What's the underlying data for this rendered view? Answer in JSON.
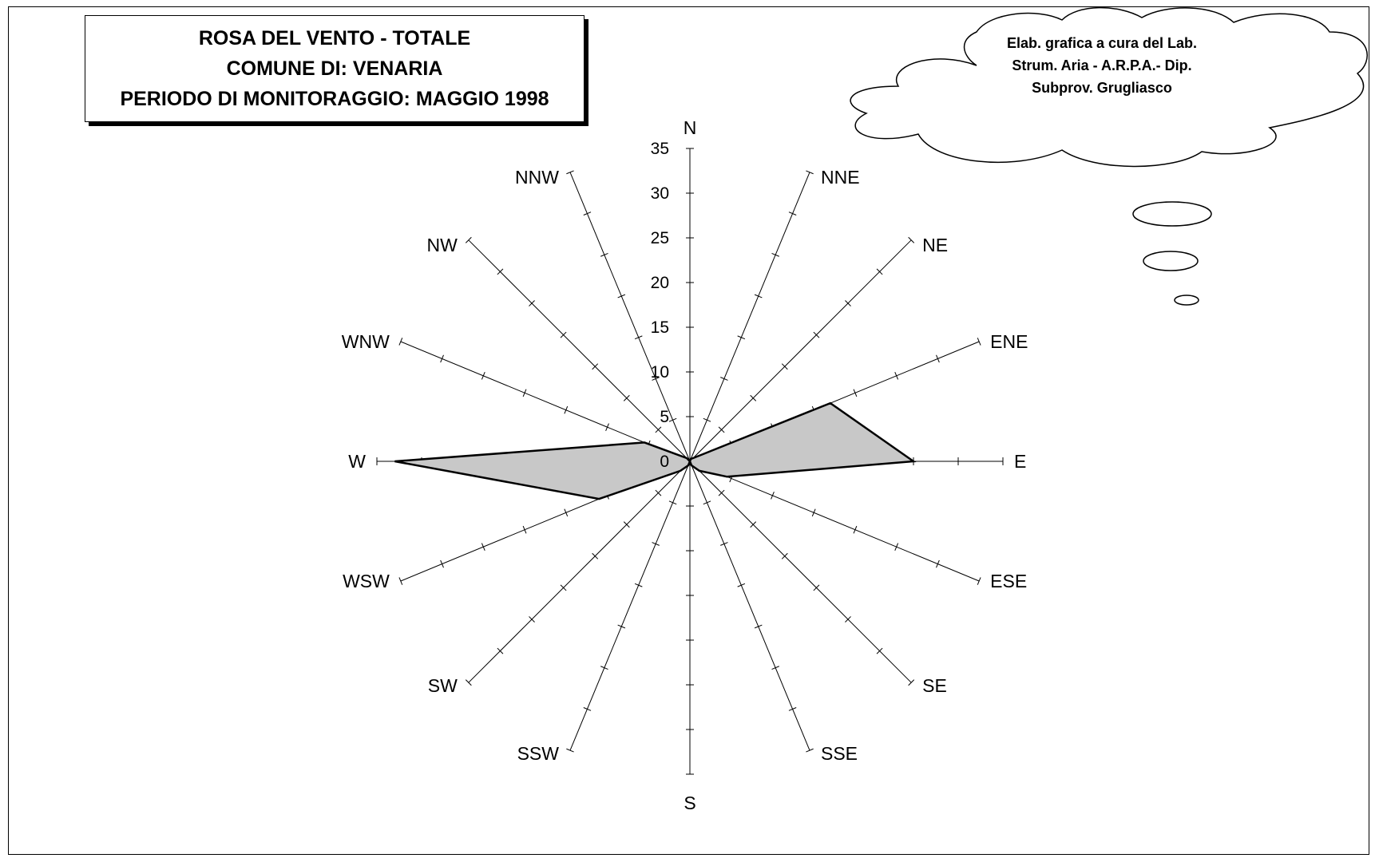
{
  "title": {
    "line1": "ROSA DEL VENTO - TOTALE",
    "line2": "COMUNE DI: VENARIA",
    "line3": "PERIODO DI MONITORAGGIO: MAGGIO 1998"
  },
  "credit": {
    "line1": "Elab. grafica a cura del Lab.",
    "line2": "Strum. Aria - A.R.P.A.- Dip.",
    "line3": "Subprov. Grugliasco"
  },
  "chart_data": {
    "type": "radar",
    "categories": [
      "N",
      "NNE",
      "NE",
      "ENE",
      "E",
      "ESE",
      "SE",
      "SSE",
      "S",
      "SSW",
      "SW",
      "WSW",
      "W",
      "WNW",
      "NW",
      "NNW"
    ],
    "values": [
      0,
      0.3,
      0.5,
      17,
      25,
      4.5,
      1.5,
      0.5,
      0,
      0.5,
      1.5,
      11,
      33,
      5.5,
      0.5,
      0
    ],
    "radial_ticks": [
      0,
      5,
      10,
      15,
      20,
      25,
      30,
      35
    ],
    "rlim": [
      0,
      35
    ],
    "fill_color": "#c8c8c8",
    "stroke_color": "#000000"
  }
}
